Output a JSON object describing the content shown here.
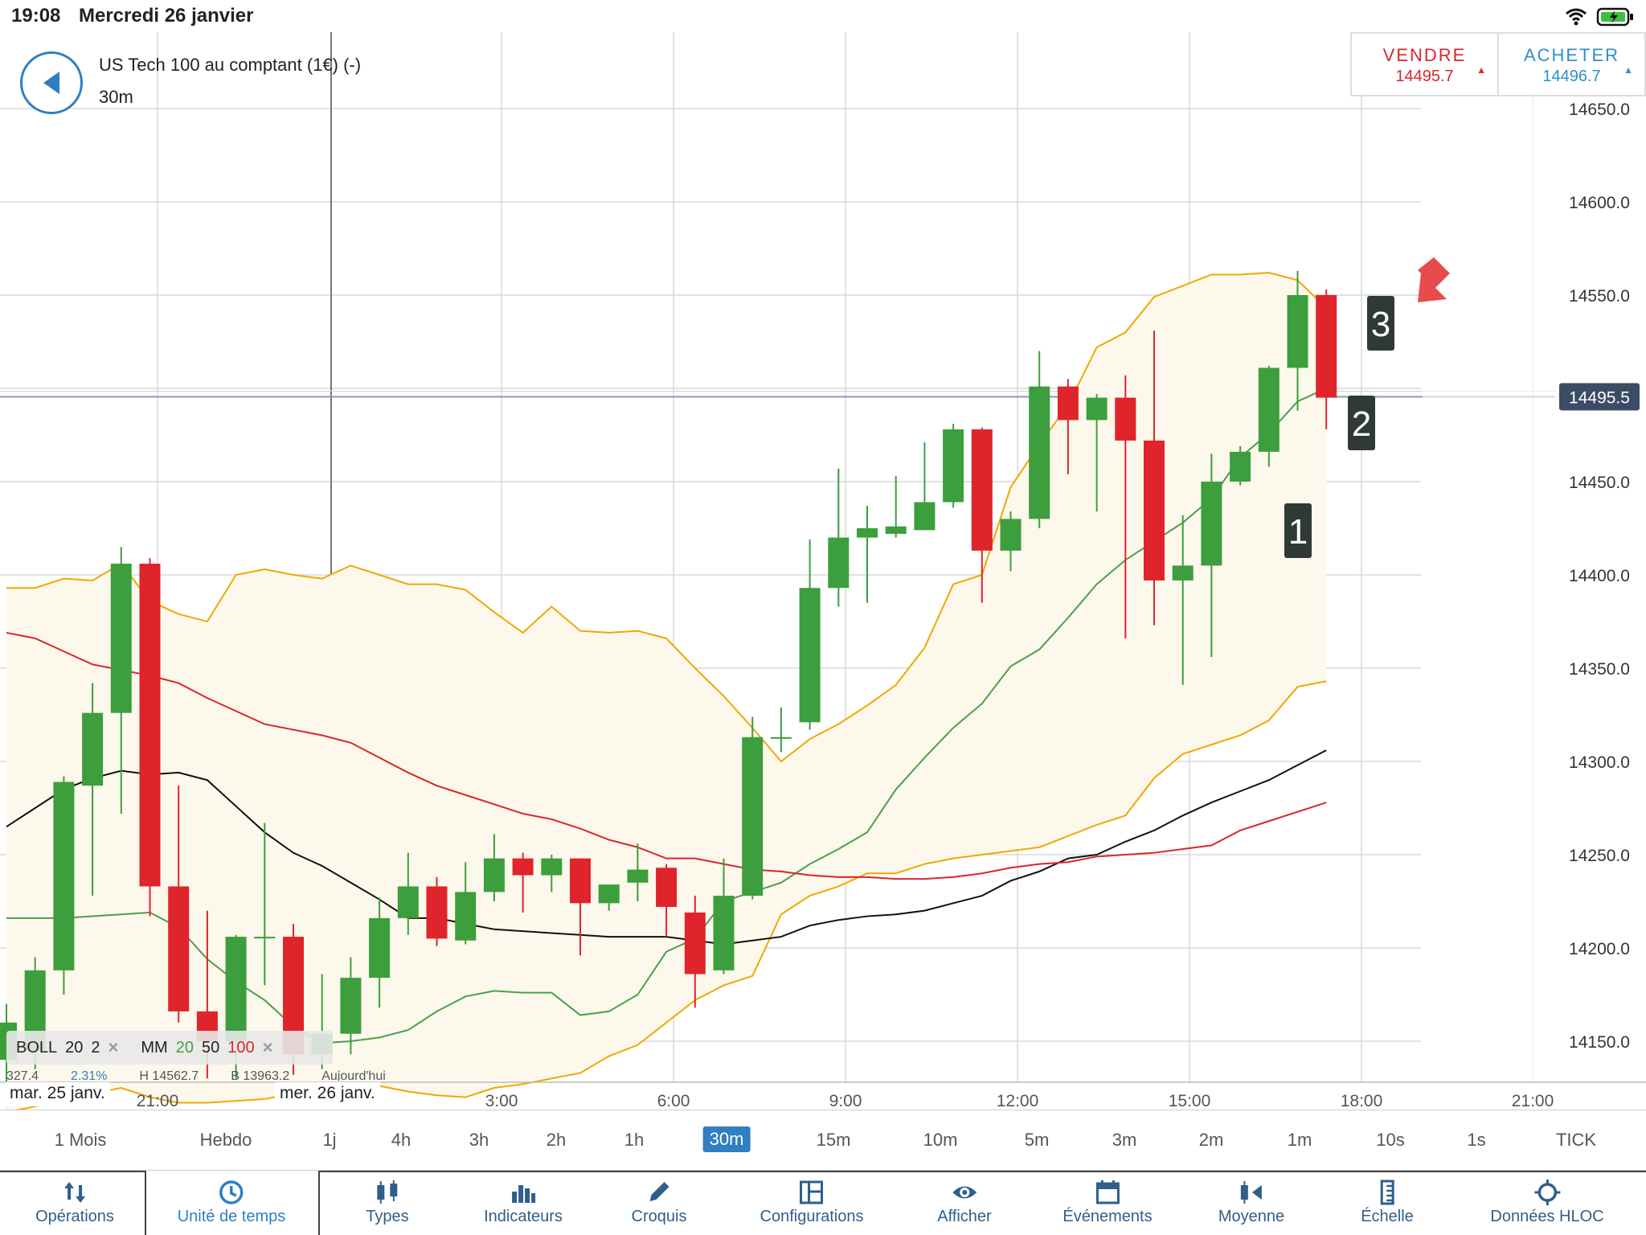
{
  "status": {
    "time": "19:08",
    "date": "Mercredi 26 janvier"
  },
  "header": {
    "instrument": "US Tech 100 au comptant (1€) (-)",
    "timeframe": "30m"
  },
  "trade": {
    "sell": {
      "label": "VENDRE",
      "price": "14495.7",
      "arrow": "▲"
    },
    "buy": {
      "label": "ACHETER",
      "price": "14496.7",
      "arrow": "▲"
    }
  },
  "indicators": {
    "boll": {
      "name": "BOLL",
      "p1": "20",
      "p2": "2"
    },
    "mm": {
      "name": "MM",
      "p1": "20",
      "p2": "50",
      "p3": "100"
    },
    "close": "×"
  },
  "info": {
    "a": "327.4",
    "b": "2.31%",
    "h": "H 14562.7",
    "l": "B 13963.2",
    "today": "Aujourd'hui"
  },
  "markers": [
    "1",
    "2",
    "3"
  ],
  "timeframes": {
    "items": [
      "1 Mois",
      "Hebdo",
      "1j",
      "4h",
      "3h",
      "2h",
      "1h",
      "30m",
      "15m",
      "10m",
      "5m",
      "3m",
      "2m",
      "1m",
      "10s",
      "1s",
      "TICK"
    ],
    "selected": "30m"
  },
  "toolbar": {
    "items": [
      {
        "label": "Opérations",
        "icon": "updown-arrows-icon"
      },
      {
        "label": "Unité de temps",
        "icon": "clock-icon"
      },
      {
        "label": "Types",
        "icon": "candles-icon"
      },
      {
        "label": "Indicateurs",
        "icon": "bars-icon"
      },
      {
        "label": "Croquis",
        "icon": "pencil-icon"
      },
      {
        "label": "Configurations",
        "icon": "layout-icon"
      },
      {
        "label": "Afficher",
        "icon": "eye-icon"
      },
      {
        "label": "Événements",
        "icon": "calendar-icon"
      },
      {
        "label": "Moyenne",
        "icon": "average-icon"
      },
      {
        "label": "Échelle",
        "icon": "scale-icon"
      },
      {
        "label": "Données HLOC",
        "icon": "crosshair-icon"
      }
    ]
  },
  "colors": {
    "up": "#3c9e3c",
    "down": "#e0242b",
    "boll": "#f0a800",
    "mm20": "#4aa04a",
    "mm50": "#111111",
    "mm100": "#d9262b",
    "accent": "#2f7fc1",
    "price_tag": "#3b4c66"
  },
  "chart_data": {
    "type": "candlestick",
    "ylim": [
      14130,
      14670
    ],
    "y_ticks": [
      "14650.0",
      "14600.0",
      "14550.0",
      "14500.0",
      "14450.0",
      "14400.0",
      "14350.0",
      "14300.0",
      "14250.0",
      "14200.0",
      "14150.0"
    ],
    "x_ticks": [
      "21:00",
      "3:00",
      "6:00",
      "9:00",
      "12:00",
      "15:00",
      "18:00",
      "21:00"
    ],
    "date_labels": [
      "mar. 25 janv.",
      "mer. 26 janv."
    ],
    "current_price": "14495.5",
    "candles": [
      {
        "t": "19:00",
        "o": 14140,
        "h": 14170,
        "l": 14115,
        "c": 14160
      },
      {
        "t": "19:30",
        "o": 14145,
        "h": 14195,
        "l": 14135,
        "c": 14188
      },
      {
        "t": "20:00",
        "o": 14188,
        "h": 14292,
        "l": 14175,
        "c": 14289
      },
      {
        "t": "20:30",
        "o": 14287,
        "h": 14342,
        "l": 14228,
        "c": 14326
      },
      {
        "t": "21:00",
        "o": 14326,
        "h": 14415,
        "l": 14272,
        "c": 14406
      },
      {
        "t": "21:30",
        "o": 14406,
        "h": 14409,
        "l": 14217,
        "c": 14233
      },
      {
        "t": "22:00",
        "o": 14233,
        "h": 14287,
        "l": 14160,
        "c": 14166
      },
      {
        "t": "22:30",
        "o": 14166,
        "h": 14220,
        "l": 14130,
        "c": 14150
      },
      {
        "t": "02:00",
        "o": 14150,
        "h": 14207,
        "l": 14130,
        "c": 14206
      },
      {
        "t": "02:30",
        "o": 14206,
        "h": 14267,
        "l": 14180,
        "c": 14206
      },
      {
        "t": "03:00",
        "o": 14206,
        "h": 14213,
        "l": 14132,
        "c": 14143
      },
      {
        "t": "03:30",
        "o": 14143,
        "h": 14186,
        "l": 14135,
        "c": 14154
      },
      {
        "t": "04:00",
        "o": 14154,
        "h": 14195,
        "l": 14143,
        "c": 14184
      },
      {
        "t": "04:30",
        "o": 14184,
        "h": 14227,
        "l": 14168,
        "c": 14216
      },
      {
        "t": "05:00",
        "o": 14216,
        "h": 14251,
        "l": 14207,
        "c": 14233
      },
      {
        "t": "05:30",
        "o": 14233,
        "h": 14238,
        "l": 14201,
        "c": 14205
      },
      {
        "t": "06:00",
        "o": 14204,
        "h": 14246,
        "l": 14202,
        "c": 14230
      },
      {
        "t": "06:30",
        "o": 14230,
        "h": 14261,
        "l": 14225,
        "c": 14248
      },
      {
        "t": "07:00",
        "o": 14248,
        "h": 14251,
        "l": 14219,
        "c": 14239
      },
      {
        "t": "07:30",
        "o": 14239,
        "h": 14250,
        "l": 14230,
        "c": 14248
      },
      {
        "t": "08:00",
        "o": 14248,
        "h": 14248,
        "l": 14196,
        "c": 14224
      },
      {
        "t": "08:30",
        "o": 14224,
        "h": 14234,
        "l": 14220,
        "c": 14234
      },
      {
        "t": "09:00",
        "o": 14235,
        "h": 14256,
        "l": 14225,
        "c": 14242
      },
      {
        "t": "09:30",
        "o": 14243,
        "h": 14245,
        "l": 14206,
        "c": 14222
      },
      {
        "t": "10:00",
        "o": 14219,
        "h": 14228,
        "l": 14168,
        "c": 14186
      },
      {
        "t": "10:30",
        "o": 14188,
        "h": 14248,
        "l": 14186,
        "c": 14228
      },
      {
        "t": "11:00",
        "o": 14228,
        "h": 14324,
        "l": 14226,
        "c": 14313
      },
      {
        "t": "11:30",
        "o": 14313,
        "h": 14329,
        "l": 14305,
        "c": 14313
      },
      {
        "t": "12:00",
        "o": 14321,
        "h": 14419,
        "l": 14317,
        "c": 14393
      },
      {
        "t": "12:30",
        "o": 14393,
        "h": 14457,
        "l": 14383,
        "c": 14420
      },
      {
        "t": "13:00",
        "o": 14420,
        "h": 14437,
        "l": 14385,
        "c": 14425
      },
      {
        "t": "13:30",
        "o": 14422,
        "h": 14453,
        "l": 14420,
        "c": 14426
      },
      {
        "t": "14:00",
        "o": 14424,
        "h": 14471,
        "l": 14424,
        "c": 14439
      },
      {
        "t": "14:30",
        "o": 14439,
        "h": 14481,
        "l": 14436,
        "c": 14478
      },
      {
        "t": "15:00",
        "o": 14478,
        "h": 14479,
        "l": 14385,
        "c": 14413
      },
      {
        "t": "15:30",
        "o": 14413,
        "h": 14434,
        "l": 14402,
        "c": 14430
      },
      {
        "t": "16:00",
        "o": 14430,
        "h": 14520,
        "l": 14425,
        "c": 14501
      },
      {
        "t": "16:30",
        "o": 14501,
        "h": 14505,
        "l": 14454,
        "c": 14483
      },
      {
        "t": "17:00",
        "o": 14483,
        "h": 14497,
        "l": 14434,
        "c": 14495
      },
      {
        "t": "17:30",
        "o": 14495,
        "h": 14507,
        "l": 14366,
        "c": 14472
      },
      {
        "t": "18:00",
        "o": 14472,
        "h": 14531,
        "l": 14373,
        "c": 14397
      },
      {
        "t": "18:30",
        "o": 14397,
        "h": 14432,
        "l": 14341,
        "c": 14405
      },
      {
        "t": "19:00",
        "o": 14405,
        "h": 14465,
        "l": 14356,
        "c": 14450
      },
      {
        "t": "19:30",
        "o": 14450,
        "h": 14469,
        "l": 14448,
        "c": 14466
      },
      {
        "t": "20:00",
        "o": 14466,
        "h": 14512,
        "l": 14458,
        "c": 14511
      },
      {
        "t": "20:30",
        "o": 14511,
        "h": 14563,
        "l": 14488,
        "c": 14550
      },
      {
        "t": "21:00",
        "o": 14550,
        "h": 14553,
        "l": 14478,
        "c": 14495
      }
    ],
    "series": [
      {
        "name": "BOLL upper",
        "values": [
          14393,
          14393,
          14398,
          14397,
          14406,
          14386,
          14379,
          14375,
          14400,
          14403,
          14400,
          14398,
          14405,
          14400,
          14395,
          14395,
          14392,
          14380,
          14369,
          14383,
          14370,
          14369,
          14370,
          14366,
          14350,
          14335,
          14318,
          14300,
          14312,
          14320,
          14330,
          14341,
          14361,
          14395,
          14400,
          14447,
          14470,
          14491,
          14522,
          14530,
          14549,
          14555,
          14561,
          14561,
          14562,
          14558,
          14543
        ]
      },
      {
        "name": "BOLL lower",
        "values": [
          14112,
          14115,
          14119,
          14122,
          14125,
          14120,
          14117,
          14117,
          14118,
          14119,
          14122,
          14122,
          14125,
          14126,
          14123,
          14121,
          14120,
          14125,
          14127,
          14130,
          14133,
          14142,
          14148,
          14160,
          14172,
          14180,
          14185,
          14218,
          14228,
          14233,
          14240,
          14240,
          14245,
          14248,
          14250,
          14252,
          14254,
          14260,
          14266,
          14271,
          14291,
          14304,
          14309,
          14314,
          14322,
          14340,
          14343
        ]
      },
      {
        "name": "MM20",
        "values": [
          14216,
          14216,
          14216,
          14217,
          14218,
          14219,
          14211,
          14194,
          14182,
          14172,
          14158,
          14149,
          14150,
          14152,
          14156,
          14166,
          14174,
          14177,
          14176,
          14176,
          14164,
          14166,
          14175,
          14198,
          14205,
          14225,
          14230,
          14235,
          14245,
          14253,
          14262,
          14285,
          14302,
          14318,
          14331,
          14351,
          14360,
          14377,
          14395,
          14408,
          14418,
          14428,
          14441,
          14463,
          14476,
          14493,
          14500
        ]
      },
      {
        "name": "MM50",
        "values": [
          14265,
          14275,
          14285,
          14291,
          14295,
          14293,
          14294,
          14290,
          14276,
          14262,
          14251,
          14244,
          14235,
          14226,
          14216,
          14216,
          14213,
          14210,
          14209,
          14208,
          14207,
          14206,
          14206,
          14206,
          14204,
          14202,
          14204,
          14206,
          14212,
          14215,
          14217,
          14218,
          14220,
          14224,
          14228,
          14236,
          14241,
          14248,
          14250,
          14257,
          14263,
          14271,
          14278,
          14284,
          14290,
          14298,
          14306
        ]
      },
      {
        "name": "MM100",
        "values": [
          14369,
          14366,
          14359,
          14352,
          14349,
          14346,
          14342,
          14334,
          14327,
          14320,
          14317,
          14314,
          14310,
          14302,
          14294,
          14287,
          14282,
          14277,
          14272,
          14269,
          14264,
          14258,
          14254,
          14248,
          14248,
          14245,
          14242,
          14241,
          14239,
          14238,
          14238,
          14237,
          14237,
          14238,
          14240,
          14243,
          14245,
          14246,
          14249,
          14250,
          14251,
          14253,
          14255,
          14263,
          14268,
          14273,
          14278
        ]
      }
    ]
  }
}
